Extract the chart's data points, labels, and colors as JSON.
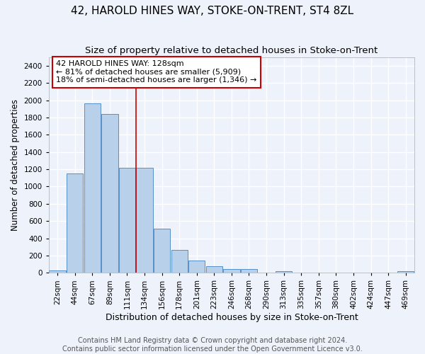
{
  "title": "42, HAROLD HINES WAY, STOKE-ON-TRENT, ST4 8ZL",
  "subtitle": "Size of property relative to detached houses in Stoke-on-Trent",
  "xlabel": "Distribution of detached houses by size in Stoke-on-Trent",
  "ylabel": "Number of detached properties",
  "categories": [
    "22sqm",
    "44sqm",
    "67sqm",
    "89sqm",
    "111sqm",
    "134sqm",
    "156sqm",
    "178sqm",
    "201sqm",
    "223sqm",
    "246sqm",
    "268sqm",
    "290sqm",
    "313sqm",
    "335sqm",
    "357sqm",
    "380sqm",
    "402sqm",
    "424sqm",
    "447sqm",
    "469sqm"
  ],
  "values": [
    30,
    1150,
    1960,
    1840,
    1220,
    1220,
    510,
    265,
    145,
    80,
    45,
    40,
    0,
    15,
    0,
    0,
    0,
    0,
    0,
    0,
    15
  ],
  "bar_color": "#b8d0ea",
  "bar_edge_color": "#5590c8",
  "vline_x_idx": 5,
  "vline_color": "#cc0000",
  "annotation_text": "42 HAROLD HINES WAY: 128sqm\n← 81% of detached houses are smaller (5,909)\n18% of semi-detached houses are larger (1,346) →",
  "annotation_box_color": "white",
  "annotation_box_edge": "#cc0000",
  "ylim": [
    0,
    2500
  ],
  "yticks": [
    0,
    200,
    400,
    600,
    800,
    1000,
    1200,
    1400,
    1600,
    1800,
    2000,
    2200,
    2400
  ],
  "footer_line1": "Contains HM Land Registry data © Crown copyright and database right 2024.",
  "footer_line2": "Contains public sector information licensed under the Open Government Licence v3.0.",
  "background_color": "#eef2fb",
  "grid_color": "#ffffff",
  "title_fontsize": 11,
  "subtitle_fontsize": 9.5,
  "ylabel_fontsize": 8.5,
  "xlabel_fontsize": 9,
  "footer_fontsize": 7,
  "tick_fontsize": 7.5,
  "annot_fontsize": 8
}
